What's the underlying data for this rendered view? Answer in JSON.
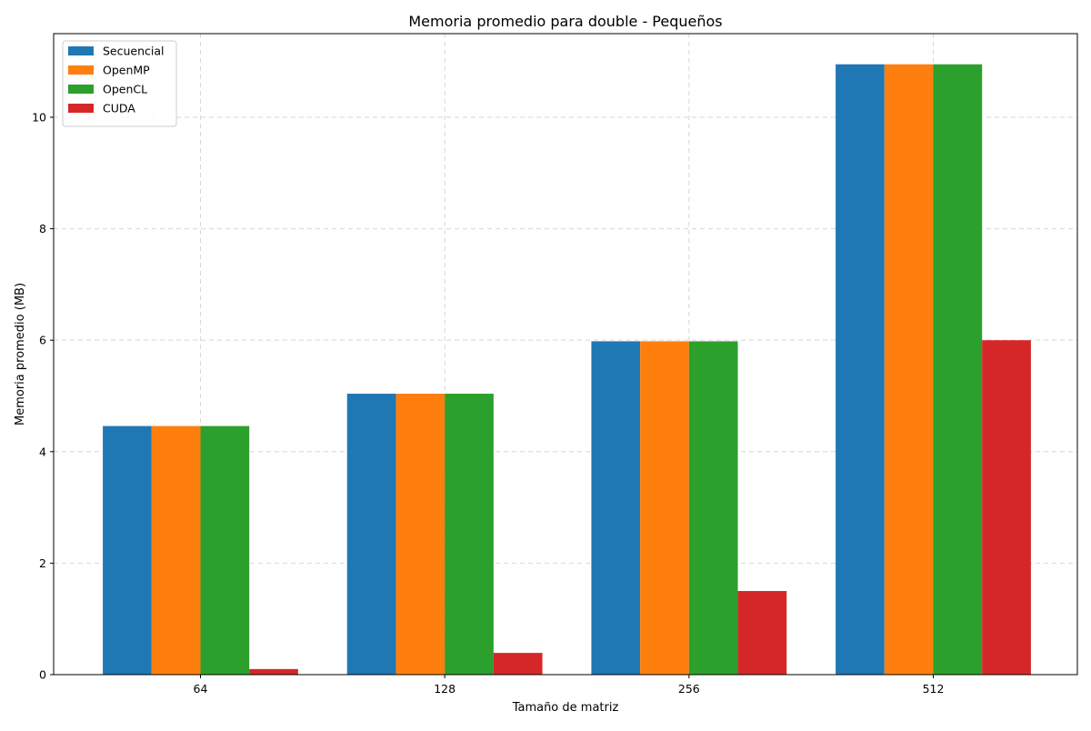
{
  "chart_data": {
    "type": "bar",
    "title": "Memoria promedio para double - Pequeños",
    "xlabel": "Tamaño de matriz",
    "ylabel": "Memoria promedio (MB)",
    "categories": [
      "64",
      "128",
      "256",
      "512"
    ],
    "series": [
      {
        "name": "Secuencial",
        "color": "#1f77b4",
        "values": [
          4.46,
          5.04,
          5.98,
          10.95
        ]
      },
      {
        "name": "OpenMP",
        "color": "#ff7f0e",
        "values": [
          4.46,
          5.04,
          5.98,
          10.95
        ]
      },
      {
        "name": "OpenCL",
        "color": "#2ca02c",
        "values": [
          4.46,
          5.04,
          5.98,
          10.95
        ]
      },
      {
        "name": "CUDA",
        "color": "#d62728",
        "values": [
          0.1,
          0.39,
          1.5,
          6.0
        ]
      }
    ],
    "ylim": [
      0,
      11.5
    ],
    "yticks": [
      0,
      2,
      4,
      6,
      8,
      10
    ],
    "grid": true,
    "legend_position": "top-left"
  }
}
